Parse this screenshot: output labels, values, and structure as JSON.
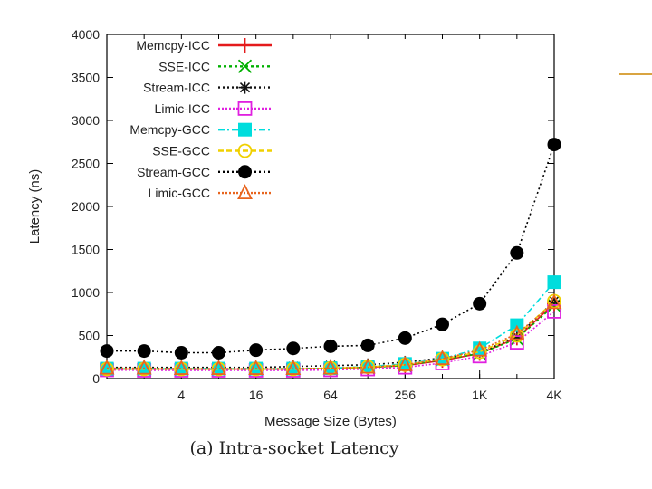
{
  "chart_data": {
    "type": "line",
    "title": "",
    "xlabel": "Message Size (Bytes)",
    "ylabel": "Latency (ns)",
    "x": [
      1,
      2,
      4,
      8,
      16,
      32,
      64,
      128,
      256,
      512,
      1024,
      2048,
      4096
    ],
    "xtick_values": [
      4,
      16,
      64,
      256,
      1024,
      4096
    ],
    "xtick_labels": [
      "4",
      "16",
      "64",
      "256",
      "1K",
      "4K"
    ],
    "xlim": [
      1,
      4096
    ],
    "xscale": "log2",
    "ylim": [
      0,
      4000
    ],
    "yticks": [
      0,
      500,
      1000,
      1500,
      2000,
      2500,
      3000,
      3500,
      4000
    ],
    "grid": false,
    "legend_position": "top-left",
    "series": [
      {
        "name": "Memcpy-ICC",
        "color": "#e41a1c",
        "marker": "plus",
        "dash": "",
        "values": [
          110,
          110,
          110,
          110,
          110,
          110,
          120,
          130,
          150,
          210,
          290,
          470,
          870
        ]
      },
      {
        "name": "SSE-ICC",
        "color": "#00b000",
        "marker": "x",
        "dash": "3,3",
        "values": [
          110,
          110,
          110,
          110,
          110,
          110,
          120,
          130,
          150,
          220,
          290,
          460,
          850
        ]
      },
      {
        "name": "Stream-ICC",
        "color": "#111111",
        "marker": "asterisk",
        "dash": "2,3",
        "values": [
          130,
          130,
          130,
          130,
          130,
          140,
          150,
          160,
          190,
          240,
          300,
          490,
          900
        ]
      },
      {
        "name": "Limic-ICC",
        "color": "#e020e0",
        "marker": "square",
        "dash": "2,2",
        "values": [
          100,
          95,
          95,
          95,
          95,
          95,
          100,
          110,
          130,
          180,
          260,
          420,
          780
        ]
      },
      {
        "name": "Memcpy-GCC",
        "color": "#00dddd",
        "marker": "filled-square",
        "dash": "7,3,2,3",
        "values": [
          115,
          115,
          115,
          115,
          115,
          115,
          120,
          140,
          170,
          230,
          350,
          620,
          1120
        ]
      },
      {
        "name": "SSE-GCC",
        "color": "#f0d000",
        "marker": "circle",
        "dash": "6,3",
        "values": [
          110,
          110,
          110,
          110,
          110,
          110,
          120,
          135,
          160,
          225,
          310,
          500,
          900
        ]
      },
      {
        "name": "Stream-GCC",
        "color": "#000000",
        "marker": "filled-circle",
        "dash": "2,3",
        "values": [
          320,
          320,
          300,
          300,
          330,
          350,
          375,
          385,
          470,
          630,
          870,
          1460,
          2720
        ]
      },
      {
        "name": "Limic-GCC",
        "color": "#e8641e",
        "marker": "triangle",
        "dash": "2,2",
        "values": [
          120,
          120,
          115,
          115,
          115,
          115,
          120,
          130,
          160,
          230,
          330,
          520,
          880
        ]
      }
    ]
  },
  "caption": "(a) Intra-socket Latency"
}
